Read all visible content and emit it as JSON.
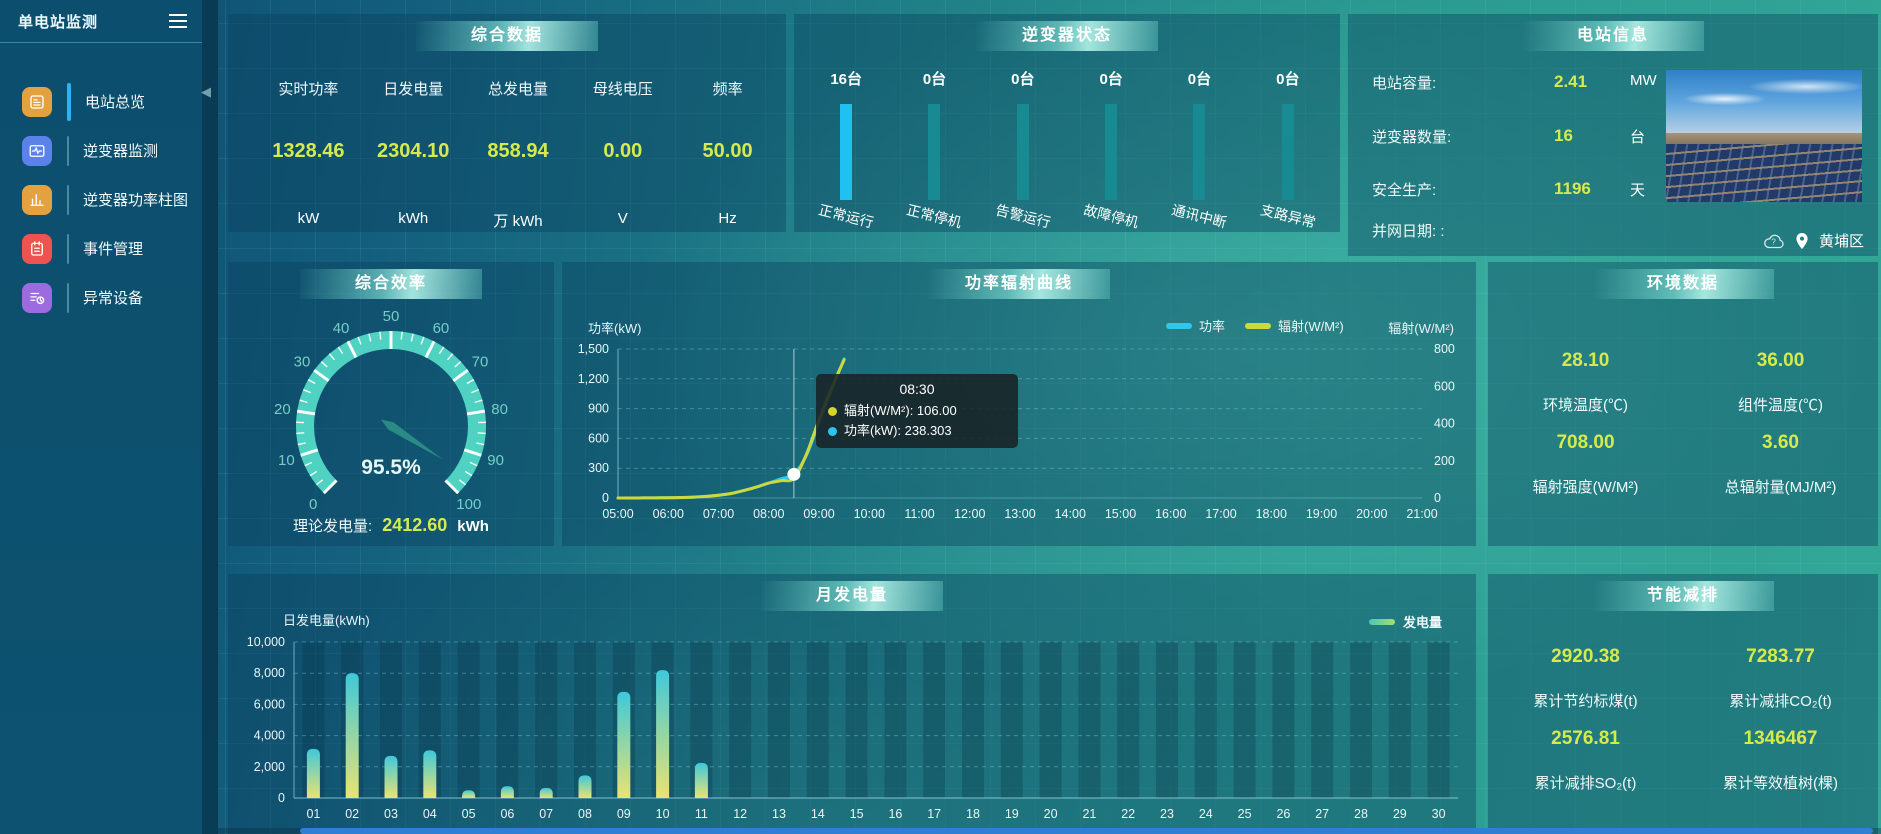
{
  "app": {
    "title": "单电站监测"
  },
  "sidebar": {
    "items": [
      {
        "label": "电站总览",
        "icon": "station-overview-icon",
        "active": true
      },
      {
        "label": "逆变器监测",
        "icon": "inverter-monitor-icon",
        "active": false
      },
      {
        "label": "逆变器功率柱图",
        "icon": "inverter-power-bars-icon",
        "active": false
      },
      {
        "label": "事件管理",
        "icon": "event-management-icon",
        "active": false
      },
      {
        "label": "异常设备",
        "icon": "abnormal-device-icon",
        "active": false
      }
    ]
  },
  "panels": {
    "summary": {
      "title": "综合数据",
      "metrics": [
        {
          "label": "实时功率",
          "value": "1328.46",
          "unit": "kW"
        },
        {
          "label": "日发电量",
          "value": "2304.10",
          "unit": "kWh"
        },
        {
          "label": "总发电量",
          "value": "858.94",
          "unit": "万 kWh"
        },
        {
          "label": "母线电压",
          "value": "0.00",
          "unit": "V"
        },
        {
          "label": "频率",
          "value": "50.00",
          "unit": "Hz"
        }
      ]
    },
    "inverter_status": {
      "title": "逆变器状态",
      "items": [
        {
          "count": "16台",
          "label": "正常运行",
          "highlight": true
        },
        {
          "count": "0台",
          "label": "正常停机",
          "highlight": false
        },
        {
          "count": "0台",
          "label": "告警运行",
          "highlight": false
        },
        {
          "count": "0台",
          "label": "故障停机",
          "highlight": false
        },
        {
          "count": "0台",
          "label": "通讯中断",
          "highlight": false
        },
        {
          "count": "0台",
          "label": "支路异常",
          "highlight": false
        }
      ]
    },
    "station_info": {
      "title": "电站信息",
      "rows": [
        {
          "label": "电站容量:",
          "value": "2.41",
          "unit": "MW"
        },
        {
          "label": "逆变器数量:",
          "value": "16",
          "unit": "台"
        },
        {
          "label": "安全生产:",
          "value": "1196",
          "unit": "天"
        },
        {
          "label": "并网日期: :",
          "value": "",
          "unit": ""
        }
      ],
      "location": "黄埔区"
    },
    "efficiency": {
      "title": "综合效率",
      "footer": {
        "label": "理论发电量:",
        "value": "2412.60",
        "unit": "kWh"
      }
    },
    "power_curve": {
      "title": "功率辐射曲线",
      "tooltip": {
        "time": "08:30",
        "radiation_text": "辐射(W/M²): 106.00",
        "power_text": "功率(kW): 238.303"
      }
    },
    "environment": {
      "title": "环境数据",
      "metrics": [
        {
          "value": "28.10",
          "label": "环境温度(℃)"
        },
        {
          "value": "36.00",
          "label": "组件温度(℃)"
        },
        {
          "value": "708.00",
          "label": "辐射强度(W/M²)"
        },
        {
          "value": "3.60",
          "label": "总辐射量(MJ/M²)"
        }
      ]
    },
    "monthly": {
      "title": "月发电量",
      "legend": "发电量",
      "ylabel": "日发电量(kWh)"
    },
    "savings": {
      "title": "节能减排",
      "metrics": [
        {
          "value": "2920.38",
          "label": "累计节约标煤(t)"
        },
        {
          "value": "7283.77",
          "label": "累计减排CO₂(t)"
        },
        {
          "value": "2576.81",
          "label": "累计减排SO₂(t)"
        },
        {
          "value": "1346467",
          "label": "累计等效植树(棵)"
        }
      ]
    }
  },
  "colors": {
    "value_yellow": "#d7ea4d",
    "bar_highlight": "#1ec1ef",
    "bar_normal": "#178b91",
    "series_power": "#2ec7f0",
    "series_radiation": "#ccd93c"
  },
  "chart_data": [
    {
      "id": "efficiency-gauge",
      "type": "gauge",
      "title": "综合效率",
      "min": 0,
      "max": 100,
      "value": 95.5,
      "value_label": "95.5%",
      "major_ticks": [
        0,
        10,
        20,
        30,
        40,
        50,
        60,
        70,
        80,
        90,
        100
      ],
      "arc_color": "#4fd2c2",
      "needle_color": "#2a8a84",
      "label_color": "#74cec6"
    },
    {
      "id": "power-radiation-curve",
      "type": "line",
      "title": "功率辐射曲线",
      "grid": "dashed",
      "legend_position": "top-right",
      "x_ticks": [
        "05:00",
        "06:00",
        "07:00",
        "08:00",
        "09:00",
        "10:00",
        "11:00",
        "12:00",
        "13:00",
        "14:00",
        "15:00",
        "16:00",
        "17:00",
        "18:00",
        "19:00",
        "20:00",
        "21:00"
      ],
      "x_range": [
        5,
        21
      ],
      "left_axis": {
        "name": "功率(kW)",
        "max": 1500,
        "ticks": [
          "0",
          "300",
          "600",
          "900",
          "1,200",
          "1,500"
        ]
      },
      "right_axis": {
        "name": "辐射(W/M²)",
        "max": 800,
        "ticks": [
          "0",
          "200",
          "400",
          "600",
          "800"
        ]
      },
      "series": [
        {
          "name": "功率",
          "axis": "left",
          "color": "#2ec7f0",
          "points": [
            [
              5,
              0
            ],
            [
              5.25,
              0
            ],
            [
              5.5,
              1
            ],
            [
              5.75,
              1
            ],
            [
              6,
              2
            ],
            [
              6.25,
              4
            ],
            [
              6.5,
              8
            ],
            [
              6.75,
              15
            ],
            [
              7,
              28
            ],
            [
              7.25,
              45
            ],
            [
              7.5,
              75
            ],
            [
              7.75,
              110
            ],
            [
              8,
              150
            ],
            [
              8.25,
              195
            ],
            [
              8.5,
              238.3
            ],
            [
              8.75,
              430
            ],
            [
              9,
              760
            ],
            [
              9.25,
              1090
            ],
            [
              9.5,
              1400
            ]
          ]
        },
        {
          "name": "辐射(W/M²)",
          "axis": "right",
          "color": "#ccd93c",
          "points": [
            [
              5,
              0
            ],
            [
              5.25,
              0
            ],
            [
              5.5,
              0.5
            ],
            [
              5.75,
              1
            ],
            [
              6,
              1.5
            ],
            [
              6.25,
              2.5
            ],
            [
              6.5,
              5
            ],
            [
              6.75,
              9
            ],
            [
              7,
              15
            ],
            [
              7.25,
              24
            ],
            [
              7.5,
              40
            ],
            [
              7.75,
              58
            ],
            [
              8,
              80
            ],
            [
              8.25,
              93
            ],
            [
              8.5,
              106
            ],
            [
              8.75,
              235
            ],
            [
              9,
              420
            ],
            [
              9.25,
              590
            ],
            [
              9.5,
              742
            ]
          ]
        }
      ],
      "highlight": {
        "x": 8.5,
        "time": "08:30",
        "power": 238.303,
        "radiation": 106.0
      }
    },
    {
      "id": "monthly-generation",
      "type": "bar",
      "title": "月发电量",
      "xlabel": "",
      "ylabel": "日发电量(kWh)",
      "categories": [
        "01",
        "02",
        "03",
        "04",
        "05",
        "06",
        "07",
        "08",
        "09",
        "10",
        "11",
        "12",
        "13",
        "14",
        "15",
        "16",
        "17",
        "18",
        "19",
        "20",
        "21",
        "22",
        "23",
        "24",
        "25",
        "26",
        "27",
        "28",
        "29",
        "30"
      ],
      "values": [
        3150,
        8000,
        2700,
        3050,
        500,
        750,
        650,
        1450,
        6800,
        8200,
        2250,
        0,
        0,
        0,
        0,
        0,
        0,
        0,
        0,
        0,
        0,
        0,
        0,
        0,
        0,
        0,
        0,
        0,
        0,
        0
      ],
      "ylim": [
        0,
        10000
      ],
      "y_ticks": [
        "0",
        "2,000",
        "4,000",
        "6,000",
        "8,000",
        "10,000"
      ],
      "legend": [
        "发电量"
      ],
      "bar_gradient": [
        "#e9e372",
        "#3fc8da"
      ]
    }
  ]
}
